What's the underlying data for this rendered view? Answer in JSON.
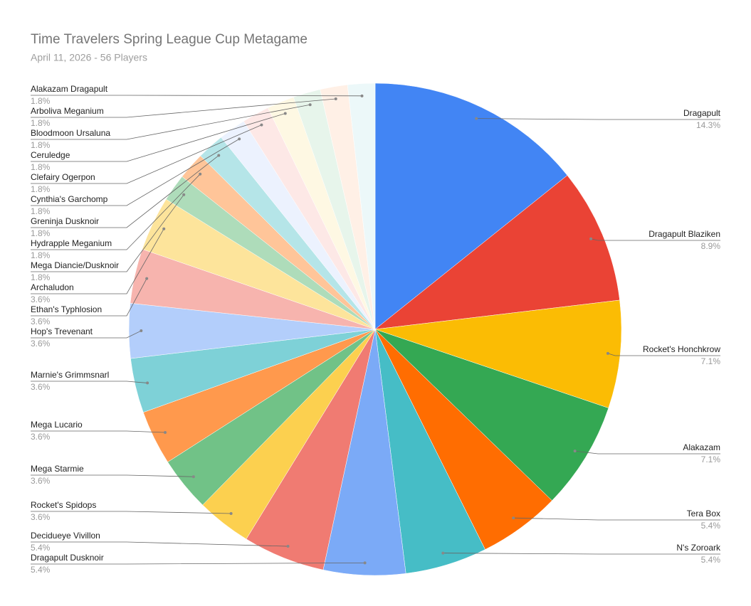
{
  "chart_data": {
    "type": "pie",
    "title": "Time Travelers Spring League Cup Metagame",
    "subtitle": "April 11, 2026 - 56 Players",
    "categories": [
      "Dragapult",
      "Dragapult Blaziken",
      "Rocket's Honchkrow",
      "Alakazam",
      "Tera Box",
      "N's Zoroark",
      "Dragapult Dusknoir",
      "Decidueye Vivillon",
      "Rocket's Spidops",
      "Mega Starmie",
      "Mega Lucario",
      "Marnie's Grimmsnarl",
      "Hop's Trevenant",
      "Ethan's Typhlosion",
      "Archaludon",
      "Mega Diancie/Dusknoir",
      "Hydrapple Meganium",
      "Greninja Dusknoir",
      "Cynthia's Garchomp",
      "Clefairy Ogerpon",
      "Ceruledge",
      "Bloodmoon Ursaluna",
      "Arboliva Meganium",
      "Alakazam Dragapult"
    ],
    "values": [
      14.3,
      8.9,
      7.1,
      7.1,
      5.4,
      5.4,
      5.4,
      5.4,
      3.6,
      3.6,
      3.6,
      3.6,
      3.6,
      3.6,
      3.6,
      1.8,
      1.8,
      1.8,
      1.8,
      1.8,
      1.8,
      1.8,
      1.8,
      1.8
    ],
    "value_labels": [
      "14.3%",
      "8.9%",
      "7.1%",
      "7.1%",
      "5.4%",
      "5.4%",
      "5.4%",
      "5.4%",
      "3.6%",
      "3.6%",
      "3.6%",
      "3.6%",
      "3.6%",
      "3.6%",
      "3.6%",
      "1.8%",
      "1.8%",
      "1.8%",
      "1.8%",
      "1.8%",
      "1.8%",
      "1.8%",
      "1.8%",
      "1.8%"
    ],
    "colors": [
      "#4285f4",
      "#ea4335",
      "#fbbc04",
      "#34a853",
      "#ff6d01",
      "#46bdc6",
      "#7baaf7",
      "#f07b72",
      "#fcd04f",
      "#71c287",
      "#ff994d",
      "#7ed1d7",
      "#b3cefb",
      "#f7b4ae",
      "#fde49b",
      "#aedcba",
      "#ffc599",
      "#b5e5e8",
      "#ecf2fe",
      "#fde8e6",
      "#fef8e3",
      "#e7f5eb",
      "#fff0e6",
      "#ecf8f9"
    ]
  }
}
